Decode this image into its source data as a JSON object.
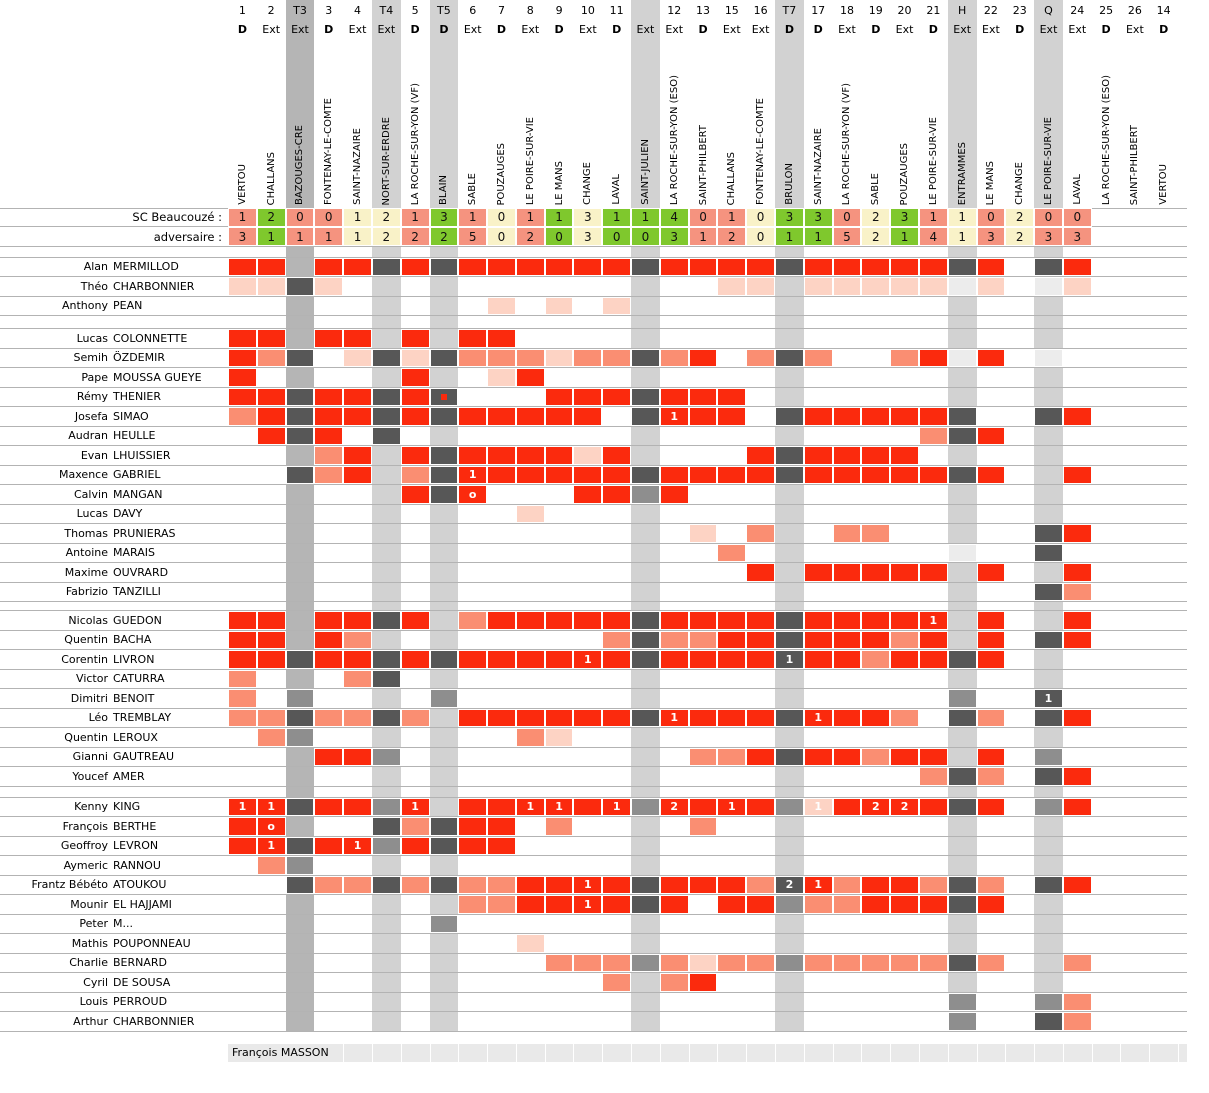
{
  "header": {
    "team_label": "SC Beaucouzé :",
    "opponent_label": "adversaire :"
  },
  "colors": {
    "red": "#fb2a0d",
    "salmon": "#fa8e72",
    "pale": "#fdd3c4",
    "dark": "#575757",
    "medium": "#8e8e8e",
    "light": "#ececec",
    "shade_light": "#d2d2d2",
    "shade_dark": "#b5b5b5",
    "win": "#7fc82d",
    "draw": "#f9f2c8",
    "loss": "#f5937f",
    "band": "#e9e9e9",
    "grid_line": "#b3b3b3"
  },
  "cell_legend": {
    "R": "played-full-red",
    "S": "played-part-salmon",
    "P": "short-appearance-pale",
    "D": "dark-gray",
    "M": "medium-gray",
    "L": "light-gray"
  },
  "columns": [
    {
      "num": "1",
      "venue": "D",
      "opponent": "VERTOU",
      "score_for": "1",
      "score_against": "3",
      "result": "loss",
      "shade": null
    },
    {
      "num": "2",
      "venue": "Ext",
      "opponent": "CHALLANS",
      "score_for": "2",
      "score_against": "1",
      "result": "win",
      "shade": null
    },
    {
      "num": "T3",
      "venue": "Ext",
      "opponent": "BAZOUGES-CRE",
      "score_for": "0",
      "score_against": "1",
      "result": "loss",
      "shade": "dark"
    },
    {
      "num": "3",
      "venue": "D",
      "opponent": "FONTENAY-LE-COMTE",
      "score_for": "0",
      "score_against": "1",
      "result": "loss",
      "shade": null
    },
    {
      "num": "4",
      "venue": "Ext",
      "opponent": "SAINT-NAZAIRE",
      "score_for": "1",
      "score_against": "1",
      "result": "draw",
      "shade": null
    },
    {
      "num": "T4",
      "venue": "Ext",
      "opponent": "NORT-SUR-ERDRE",
      "score_for": "2",
      "score_against": "2",
      "result": "draw",
      "shade": "light"
    },
    {
      "num": "5",
      "venue": "D",
      "opponent": "LA ROCHE-SUR-YON (VF)",
      "score_for": "1",
      "score_against": "2",
      "result": "loss",
      "shade": null
    },
    {
      "num": "T5",
      "venue": "D",
      "opponent": "BLAIN",
      "score_for": "3",
      "score_against": "2",
      "result": "win",
      "shade": "light"
    },
    {
      "num": "6",
      "venue": "Ext",
      "opponent": "SABLE",
      "score_for": "1",
      "score_against": "5",
      "result": "loss",
      "shade": null
    },
    {
      "num": "7",
      "venue": "D",
      "opponent": "POUZAUGES",
      "score_for": "0",
      "score_against": "0",
      "result": "draw",
      "shade": null
    },
    {
      "num": "8",
      "venue": "Ext",
      "opponent": "LE POIRE-SUR-VIE",
      "score_for": "1",
      "score_against": "2",
      "result": "loss",
      "shade": null
    },
    {
      "num": "9",
      "venue": "D",
      "opponent": "LE MANS",
      "score_for": "1",
      "score_against": "0",
      "result": "win",
      "shade": null
    },
    {
      "num": "10",
      "venue": "Ext",
      "opponent": "CHANGE",
      "score_for": "3",
      "score_against": "3",
      "result": "draw",
      "shade": null
    },
    {
      "num": "11",
      "venue": "D",
      "opponent": "LAVAL",
      "score_for": "1",
      "score_against": "0",
      "result": "win",
      "shade": null
    },
    {
      "num": "",
      "venue": "Ext",
      "opponent": "SAINT-JULIEN",
      "score_for": "1",
      "score_against": "0",
      "result": "win",
      "shade": "light"
    },
    {
      "num": "12",
      "venue": "Ext",
      "opponent": "LA ROCHE-SUR-YON (ESO)",
      "score_for": "4",
      "score_against": "3",
      "result": "win",
      "shade": null
    },
    {
      "num": "13",
      "venue": "D",
      "opponent": "SAINT-PHILBERT",
      "score_for": "0",
      "score_against": "1",
      "result": "loss",
      "shade": null
    },
    {
      "num": "15",
      "venue": "Ext",
      "opponent": "CHALLANS",
      "score_for": "1",
      "score_against": "2",
      "result": "loss",
      "shade": null
    },
    {
      "num": "16",
      "venue": "Ext",
      "opponent": "FONTENAY-LE-COMTE",
      "score_for": "0",
      "score_against": "0",
      "result": "draw",
      "shade": null
    },
    {
      "num": "T7",
      "venue": "D",
      "opponent": "BRULON",
      "score_for": "3",
      "score_against": "1",
      "result": "win",
      "shade": "light"
    },
    {
      "num": "17",
      "venue": "D",
      "opponent": "SAINT-NAZAIRE",
      "score_for": "3",
      "score_against": "1",
      "result": "win",
      "shade": null
    },
    {
      "num": "18",
      "venue": "Ext",
      "opponent": "LA ROCHE-SUR-YON (VF)",
      "score_for": "0",
      "score_against": "5",
      "result": "loss",
      "shade": null
    },
    {
      "num": "19",
      "venue": "D",
      "opponent": "SABLE",
      "score_for": "2",
      "score_against": "2",
      "result": "draw",
      "shade": null
    },
    {
      "num": "20",
      "venue": "Ext",
      "opponent": "POUZAUGES",
      "score_for": "3",
      "score_against": "1",
      "result": "win",
      "shade": null
    },
    {
      "num": "21",
      "venue": "D",
      "opponent": "LE POIRE-SUR-VIE",
      "score_for": "1",
      "score_against": "4",
      "result": "loss",
      "shade": null
    },
    {
      "num": "H",
      "venue": "Ext",
      "opponent": "ENTRAMMES",
      "score_for": "1",
      "score_against": "1",
      "result": "draw",
      "shade": "light"
    },
    {
      "num": "22",
      "venue": "Ext",
      "opponent": "LE MANS",
      "score_for": "0",
      "score_against": "3",
      "result": "loss",
      "shade": null
    },
    {
      "num": "23",
      "venue": "D",
      "opponent": "CHANGE",
      "score_for": "2",
      "score_against": "2",
      "result": "draw",
      "shade": null
    },
    {
      "num": "Q",
      "venue": "Ext",
      "opponent": "LE POIRE-SUR-VIE",
      "score_for": "0",
      "score_against": "3",
      "result": "loss",
      "shade": "light"
    },
    {
      "num": "24",
      "venue": "Ext",
      "opponent": "LAVAL",
      "score_for": "0",
      "score_against": "3",
      "result": "loss",
      "shade": null
    },
    {
      "num": "25",
      "venue": "D",
      "opponent": "LA ROCHE-SUR-YON (ESO)",
      "score_for": null,
      "score_against": null,
      "result": null,
      "shade": null
    },
    {
      "num": "26",
      "venue": "Ext",
      "opponent": "SAINT-PHILBERT",
      "score_for": null,
      "score_against": null,
      "result": null,
      "shade": null
    },
    {
      "num": "14",
      "venue": "D",
      "opponent": "VERTOU",
      "score_for": null,
      "score_against": null,
      "result": null,
      "shade": null
    }
  ],
  "groups": [
    [
      {
        "first": "Alan",
        "last": "MERMILLOD",
        "cells": {
          "0": "R",
          "1": "R",
          "3": "R",
          "4": "R",
          "5": "D",
          "6": "R",
          "7": "D",
          "8": "R",
          "9": "R",
          "10": "R",
          "11": "R",
          "12": "R",
          "13": "R",
          "14": "D",
          "15": "R",
          "16": "R",
          "17": "R",
          "18": "R",
          "19": "D",
          "20": "R",
          "21": "R",
          "22": "R",
          "23": "R",
          "24": "R",
          "25": "D",
          "26": "R",
          "28": "D",
          "29": "R"
        }
      },
      {
        "first": "Théo",
        "last": "CHARBONNIER",
        "cells": {
          "0": "P",
          "1": "P",
          "2": "D",
          "3": "P",
          "17": "P",
          "18": "P",
          "20": "P",
          "21": "P",
          "22": "P",
          "23": "P",
          "24": "P",
          "25": "L",
          "26": "P",
          "28": "L",
          "29": "P"
        }
      },
      {
        "first": "Anthony",
        "last": "PEAN",
        "cells": {
          "9": "P",
          "11": "P",
          "13": "P"
        }
      }
    ],
    [
      {
        "first": "Lucas",
        "last": "COLONNETTE",
        "cells": {
          "0": "R",
          "1": "R",
          "3": "R",
          "4": "R",
          "6": "R",
          "8": "R",
          "9": "R"
        }
      },
      {
        "first": "Semih",
        "last": "ÖZDEMIR",
        "cells": {
          "0": "R",
          "1": "S",
          "2": "D",
          "4": "P",
          "5": "D",
          "6": "P",
          "7": "D",
          "8": "S",
          "9": "S",
          "10": "S",
          "11": "P",
          "12": "S",
          "13": "S",
          "14": "D",
          "15": "S",
          "16": "R",
          "18": "S",
          "19": "D",
          "20": "S",
          "23": "S",
          "24": "R",
          "25": "L",
          "26": "R",
          "28": "L"
        }
      },
      {
        "first": "Pape",
        "last": "MOUSSA GUEYE",
        "cells": {
          "0": "R",
          "6": "R",
          "9": "P",
          "10": "R"
        }
      },
      {
        "first": "Rémy",
        "last": "THENIER",
        "cells": {
          "0": "R",
          "1": "R",
          "2": "D",
          "3": "R",
          "4": "R",
          "5": "D",
          "6": "R",
          "7": "D:dot",
          "11": "R",
          "12": "R",
          "13": "R",
          "14": "D",
          "15": "R",
          "16": "R",
          "17": "R"
        }
      },
      {
        "first": "Josefa",
        "last": "SIMAO",
        "cells": {
          "0": "S",
          "1": "R",
          "2": "D",
          "3": "R",
          "4": "R",
          "5": "D",
          "6": "R",
          "7": "D",
          "8": "R",
          "9": "R",
          "10": "R",
          "11": "R",
          "12": "R",
          "14": "D",
          "15": "R:1",
          "16": "R",
          "17": "R",
          "19": "D",
          "20": "R",
          "21": "R",
          "22": "R",
          "23": "R",
          "24": "R",
          "25": "D",
          "28": "D",
          "29": "R"
        }
      },
      {
        "first": "Audran",
        "last": "HEULLE",
        "cells": {
          "1": "R",
          "2": "D",
          "3": "R",
          "5": "D",
          "24": "S",
          "25": "D",
          "26": "R"
        }
      },
      {
        "first": "Evan",
        "last": "LHUISSIER",
        "cells": {
          "3": "S",
          "4": "R",
          "6": "R",
          "7": "D",
          "8": "R",
          "9": "R",
          "10": "R",
          "11": "R",
          "12": "P",
          "13": "R",
          "18": "R",
          "19": "D",
          "20": "R",
          "21": "R",
          "22": "R",
          "23": "R"
        }
      },
      {
        "first": "Maxence",
        "last": "GABRIEL",
        "cells": {
          "2": "D",
          "3": "S",
          "4": "R",
          "6": "S",
          "7": "D",
          "8": "R:1",
          "9": "R",
          "10": "R",
          "11": "R",
          "12": "R",
          "13": "R",
          "14": "D",
          "15": "R",
          "16": "R",
          "17": "R",
          "18": "R",
          "19": "D",
          "20": "R",
          "21": "R",
          "22": "R",
          "23": "R",
          "24": "R",
          "25": "D",
          "26": "R",
          "29": "R"
        }
      },
      {
        "first": "Calvin",
        "last": "MANGAN",
        "cells": {
          "6": "R",
          "7": "D",
          "8": "R:o",
          "12": "R",
          "13": "R",
          "14": "M",
          "15": "R"
        }
      },
      {
        "first": "Lucas",
        "last": "DAVY",
        "cells": {
          "10": "P"
        }
      },
      {
        "first": "Thomas",
        "last": "PRUNIERAS",
        "cells": {
          "16": "P",
          "18": "S",
          "21": "S",
          "22": "S",
          "28": "D",
          "29": "R"
        }
      },
      {
        "first": "Antoine",
        "last": "MARAIS",
        "cells": {
          "17": "S",
          "25": "L",
          "28": "D"
        }
      },
      {
        "first": "Maxime",
        "last": "OUVRARD",
        "cells": {
          "18": "R",
          "20": "R",
          "21": "R",
          "22": "R",
          "23": "R",
          "24": "R",
          "26": "R",
          "29": "R"
        }
      },
      {
        "first": "Fabrizio",
        "last": "TANZILLI",
        "cells": {
          "28": "D",
          "29": "S"
        }
      }
    ],
    [
      {
        "first": "Nicolas",
        "last": "GUEDON",
        "cells": {
          "0": "R",
          "1": "R",
          "3": "R",
          "4": "R",
          "5": "D",
          "6": "R",
          "8": "S",
          "9": "R",
          "10": "R",
          "11": "R",
          "12": "R",
          "13": "R",
          "14": "D",
          "15": "R",
          "16": "R",
          "17": "R",
          "18": "R",
          "19": "D",
          "20": "R",
          "21": "R",
          "22": "R",
          "23": "R",
          "24": "R:1",
          "26": "R",
          "29": "R"
        }
      },
      {
        "first": "Quentin",
        "last": "BACHA",
        "cells": {
          "0": "R",
          "1": "R",
          "3": "R",
          "4": "S",
          "13": "S",
          "14": "D",
          "15": "S",
          "16": "S",
          "17": "R",
          "18": "R",
          "19": "D",
          "20": "R",
          "21": "R",
          "22": "R",
          "23": "S",
          "24": "R",
          "26": "R",
          "28": "D",
          "29": "R"
        }
      },
      {
        "first": "Corentin",
        "last": "LIVRON",
        "cells": {
          "0": "R",
          "1": "R",
          "2": "D",
          "3": "R",
          "4": "R",
          "5": "D",
          "6": "R",
          "7": "D",
          "8": "R",
          "9": "R",
          "10": "R",
          "11": "R",
          "12": "R:1",
          "13": "R",
          "14": "D",
          "15": "R",
          "16": "R",
          "17": "R",
          "18": "R",
          "19": "D:1",
          "20": "R",
          "21": "R",
          "22": "S",
          "23": "R",
          "24": "R",
          "25": "D",
          "26": "R"
        }
      },
      {
        "first": "Victor",
        "last": "CATURRA",
        "cells": {
          "0": "S",
          "4": "S",
          "5": "D"
        }
      },
      {
        "first": "Dimitri",
        "last": "BENOIT",
        "cells": {
          "0": "S",
          "2": "M",
          "7": "M",
          "25": "M",
          "28": "D:1"
        }
      },
      {
        "first": "Léo",
        "last": "TREMBLAY",
        "cells": {
          "0": "S",
          "1": "S",
          "2": "D",
          "3": "S",
          "4": "S",
          "5": "D",
          "6": "S",
          "8": "R",
          "9": "R",
          "10": "R",
          "11": "R",
          "12": "R",
          "13": "R",
          "14": "D",
          "15": "R:1",
          "16": "R",
          "17": "R",
          "18": "R",
          "19": "D",
          "20": "R:1",
          "21": "R",
          "22": "R",
          "23": "S",
          "25": "D",
          "26": "S",
          "28": "D",
          "29": "R"
        }
      },
      {
        "first": "Quentin",
        "last": "LEROUX",
        "cells": {
          "1": "S",
          "2": "M",
          "10": "S",
          "11": "P"
        }
      },
      {
        "first": "Gianni",
        "last": "GAUTREAU",
        "cells": {
          "3": "R",
          "4": "R",
          "5": "M",
          "16": "S",
          "17": "S",
          "18": "R",
          "19": "D",
          "20": "R",
          "21": "R",
          "22": "S",
          "23": "R",
          "24": "R",
          "26": "R",
          "28": "M"
        }
      },
      {
        "first": "Youcef",
        "last": "AMER",
        "cells": {
          "24": "S",
          "25": "D",
          "26": "S",
          "28": "D",
          "29": "R"
        }
      }
    ],
    [
      {
        "first": "Kenny",
        "last": "KING",
        "cells": {
          "0": "R:1",
          "1": "R:1",
          "2": "D",
          "3": "R",
          "4": "R",
          "5": "M",
          "6": "R:1",
          "8": "R",
          "9": "R",
          "10": "R:1",
          "11": "R:1",
          "12": "R",
          "13": "R:1",
          "14": "M",
          "15": "R:2",
          "16": "R",
          "17": "R:1",
          "18": "R",
          "19": "M",
          "20": "P:1",
          "21": "R",
          "22": "R:2",
          "23": "R:2",
          "24": "R",
          "25": "D",
          "26": "R",
          "28": "M",
          "29": "R"
        }
      },
      {
        "first": "François",
        "last": "BERTHE",
        "cells": {
          "0": "R",
          "1": "R:o",
          "5": "D",
          "6": "S",
          "7": "D",
          "8": "R",
          "9": "R",
          "11": "S",
          "16": "S"
        }
      },
      {
        "first": "Geoffroy",
        "last": "LEVRON",
        "cells": {
          "0": "R",
          "1": "R:1",
          "2": "D",
          "3": "R",
          "4": "R:1",
          "5": "M",
          "6": "R",
          "7": "D",
          "8": "R",
          "9": "R"
        }
      },
      {
        "first": "Aymeric",
        "last": "RANNOU",
        "cells": {
          "1": "S",
          "2": "M"
        }
      },
      {
        "first": "Frantz Bébéto",
        "last": "ATOUKOU",
        "cells": {
          "2": "D",
          "3": "S",
          "4": "S",
          "5": "D",
          "6": "S",
          "7": "D",
          "8": "S",
          "9": "S",
          "10": "R",
          "11": "R",
          "12": "R:1",
          "13": "R",
          "14": "D",
          "15": "R",
          "16": "R",
          "17": "R",
          "18": "S",
          "19": "D:2",
          "20": "R:1",
          "21": "S",
          "22": "R",
          "23": "R",
          "24": "S",
          "25": "D",
          "26": "S",
          "28": "D",
          "29": "R"
        }
      },
      {
        "first": "Mounir",
        "last": "EL HAJJAMI",
        "cells": {
          "8": "S",
          "9": "S",
          "10": "R",
          "11": "R",
          "12": "R:1",
          "13": "R",
          "14": "D",
          "15": "R",
          "17": "R",
          "18": "R",
          "19": "M",
          "20": "S",
          "21": "S",
          "22": "R",
          "23": "R",
          "24": "R",
          "25": "D",
          "26": "R"
        }
      },
      {
        "first": "Peter",
        "last": "M...",
        "cells": {
          "7": "M"
        }
      },
      {
        "first": "Mathis",
        "last": "POUPONNEAU",
        "cells": {
          "10": "P"
        }
      },
      {
        "first": "Charlie",
        "last": "BERNARD",
        "cells": {
          "11": "S",
          "12": "S",
          "13": "S",
          "14": "M",
          "15": "S",
          "16": "P",
          "17": "S",
          "18": "S",
          "19": "M",
          "20": "S",
          "21": "S",
          "22": "S",
          "23": "S",
          "24": "S",
          "25": "D",
          "26": "S",
          "29": "S"
        }
      },
      {
        "first": "Cyril",
        "last": "DE SOUSA",
        "cells": {
          "13": "S",
          "15": "S",
          "16": "R"
        }
      },
      {
        "first": "Louis",
        "last": "PERROUD",
        "cells": {
          "25": "M",
          "28": "M",
          "29": "S"
        }
      },
      {
        "first": "Arthur",
        "last": "CHARBONNIER",
        "cells": {
          "25": "M",
          "28": "D",
          "29": "S"
        }
      }
    ]
  ],
  "footer_player": "François MASSON"
}
